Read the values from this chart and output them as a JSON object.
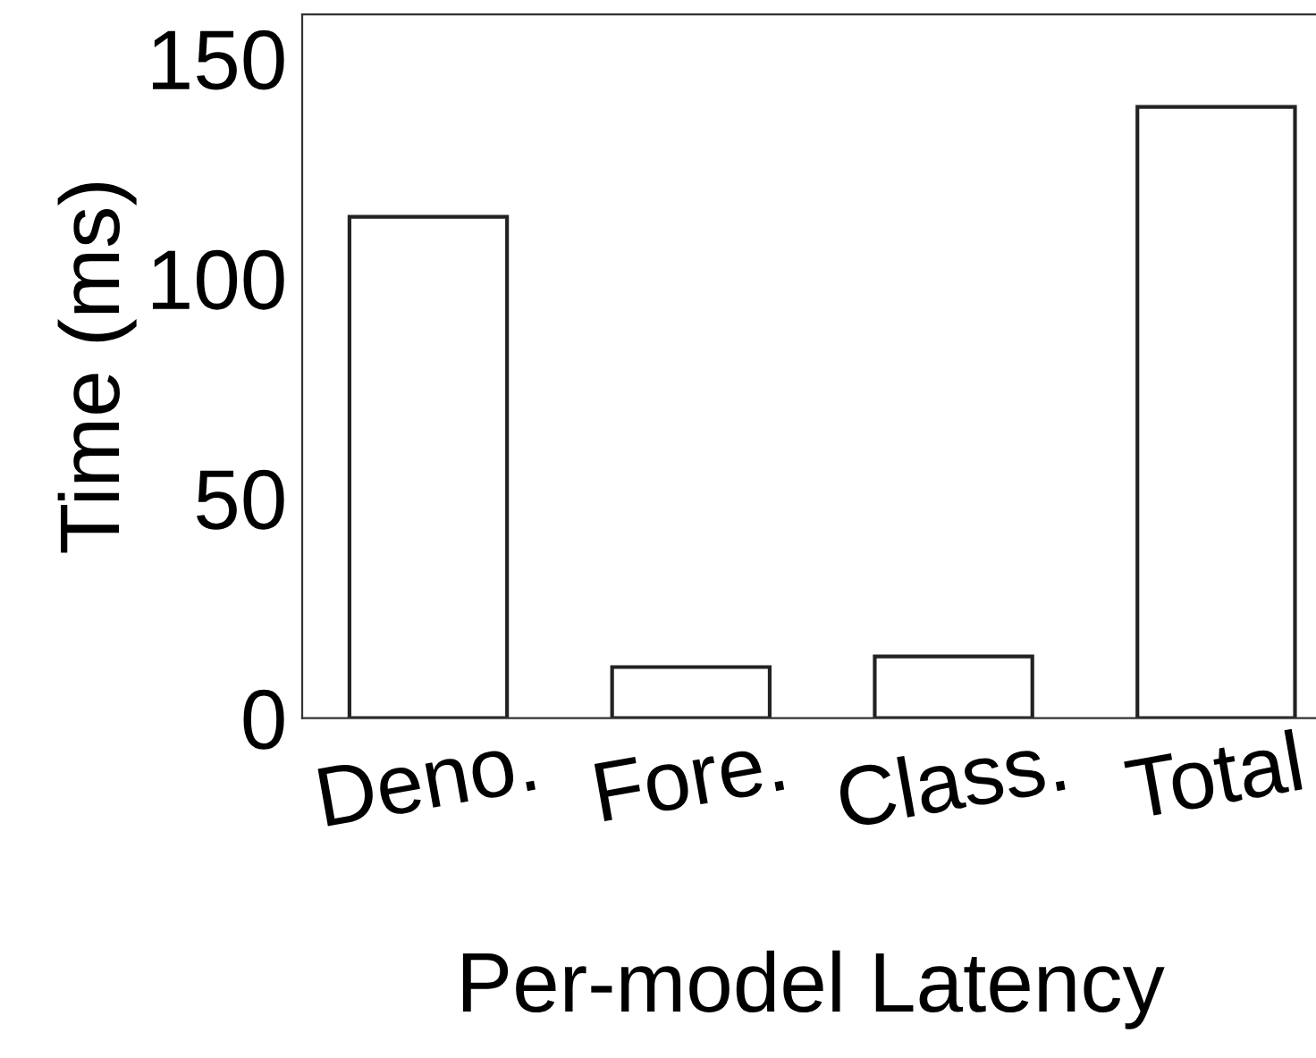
{
  "chart_data": {
    "type": "bar",
    "xlabel": "Per-model Latency",
    "ylabel": "Time (ms)",
    "categories": [
      "Deno.",
      "Fore.",
      "Class.",
      "Total"
    ],
    "values": [
      114,
      11.6,
      14,
      139
    ],
    "color": "#ffffff",
    "ylim": [
      0,
      160
    ],
    "yticks": [
      0,
      50,
      100,
      150
    ],
    "grid": false
  }
}
